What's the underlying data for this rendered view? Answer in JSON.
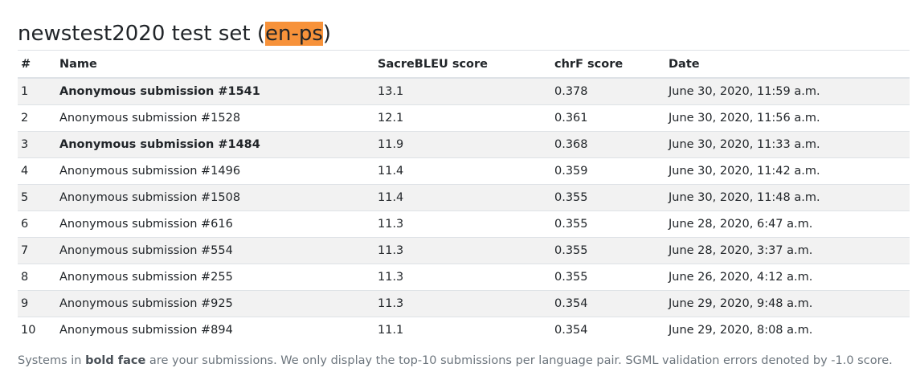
{
  "title": {
    "prefix": "newstest2020 test set (",
    "highlight": "en-ps",
    "suffix": ")"
  },
  "columns": {
    "rank": "#",
    "name": "Name",
    "sacrebleu": "SacreBLEU score",
    "chrf": "chrF score",
    "date": "Date"
  },
  "rows": [
    {
      "rank": "1",
      "name": "Anonymous submission #1541",
      "sacrebleu": "13.1",
      "chrf": "0.378",
      "date": "June 30, 2020, 11:59 a.m.",
      "own": true
    },
    {
      "rank": "2",
      "name": "Anonymous submission #1528",
      "sacrebleu": "12.1",
      "chrf": "0.361",
      "date": "June 30, 2020, 11:56 a.m.",
      "own": false
    },
    {
      "rank": "3",
      "name": "Anonymous submission #1484",
      "sacrebleu": "11.9",
      "chrf": "0.368",
      "date": "June 30, 2020, 11:33 a.m.",
      "own": true
    },
    {
      "rank": "4",
      "name": "Anonymous submission #1496",
      "sacrebleu": "11.4",
      "chrf": "0.359",
      "date": "June 30, 2020, 11:42 a.m.",
      "own": false
    },
    {
      "rank": "5",
      "name": "Anonymous submission #1508",
      "sacrebleu": "11.4",
      "chrf": "0.355",
      "date": "June 30, 2020, 11:48 a.m.",
      "own": false
    },
    {
      "rank": "6",
      "name": "Anonymous submission #616",
      "sacrebleu": "11.3",
      "chrf": "0.355",
      "date": "June 28, 2020, 6:47 a.m.",
      "own": false
    },
    {
      "rank": "7",
      "name": "Anonymous submission #554",
      "sacrebleu": "11.3",
      "chrf": "0.355",
      "date": "June 28, 2020, 3:37 a.m.",
      "own": false
    },
    {
      "rank": "8",
      "name": "Anonymous submission #255",
      "sacrebleu": "11.3",
      "chrf": "0.355",
      "date": "June 26, 2020, 4:12 a.m.",
      "own": false
    },
    {
      "rank": "9",
      "name": "Anonymous submission #925",
      "sacrebleu": "11.3",
      "chrf": "0.354",
      "date": "June 29, 2020, 9:48 a.m.",
      "own": false
    },
    {
      "rank": "10",
      "name": "Anonymous submission #894",
      "sacrebleu": "11.1",
      "chrf": "0.354",
      "date": "June 29, 2020, 8:08 a.m.",
      "own": false
    }
  ],
  "footnote": {
    "part1": "Systems in ",
    "bold": "bold face",
    "part2": " are your submissions. We only display the top-10 submissions per language pair. SGML validation errors denoted by -1.0 score."
  },
  "colors": {
    "highlight": "#f7923a",
    "stripe": "#f2f2f2",
    "muted_text": "#6c757d"
  }
}
